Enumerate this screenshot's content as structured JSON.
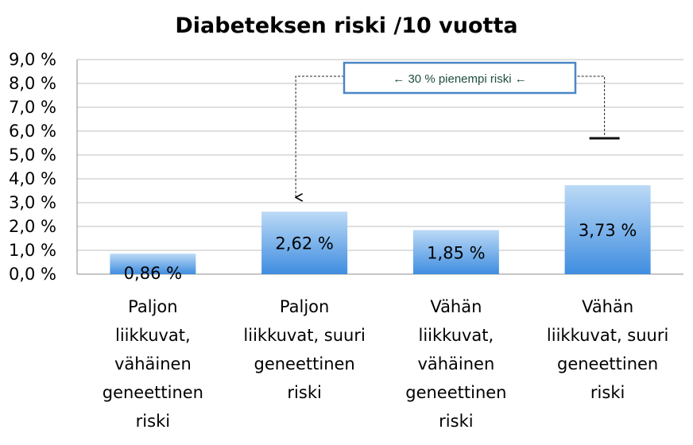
{
  "chart_data": {
    "type": "bar",
    "title": "Diabeteksen riski /10 vuotta",
    "categories": [
      [
        "Paljon",
        "liikkuvat,",
        "vähäinen",
        "geneettinen",
        "riski"
      ],
      [
        "Paljon",
        "liikkuvat, suuri",
        "geneettinen",
        "riski"
      ],
      [
        "Vähän",
        "liikkuvat,",
        "vähäinen",
        "geneettinen",
        "riski"
      ],
      [
        "Vähän",
        "liikkuvat, suuri",
        "geneettinen",
        "riski"
      ]
    ],
    "values": [
      0.86,
      2.62,
      1.85,
      3.73
    ],
    "data_labels": [
      "0,86 %",
      "2,62 %",
      "1,85 %",
      "3,73 %"
    ],
    "ylim": [
      0,
      9
    ],
    "yticks": [
      "0,0 %",
      "1,0 %",
      "2,0 %",
      "3,0 %",
      "4,0 %",
      "5,0 %",
      "6,0 %",
      "7,0 %",
      "8,0 %",
      "9,0 %"
    ],
    "grid": true,
    "annotation": {
      "text": "← 30 % pienempi riski ←",
      "reference_value": 5.7,
      "from_category": 3,
      "to_category": 1
    },
    "colors": {
      "bar_top": "#bcdaf6",
      "bar_bottom": "#3f8de0",
      "annotation_border": "#4a86c5"
    }
  }
}
